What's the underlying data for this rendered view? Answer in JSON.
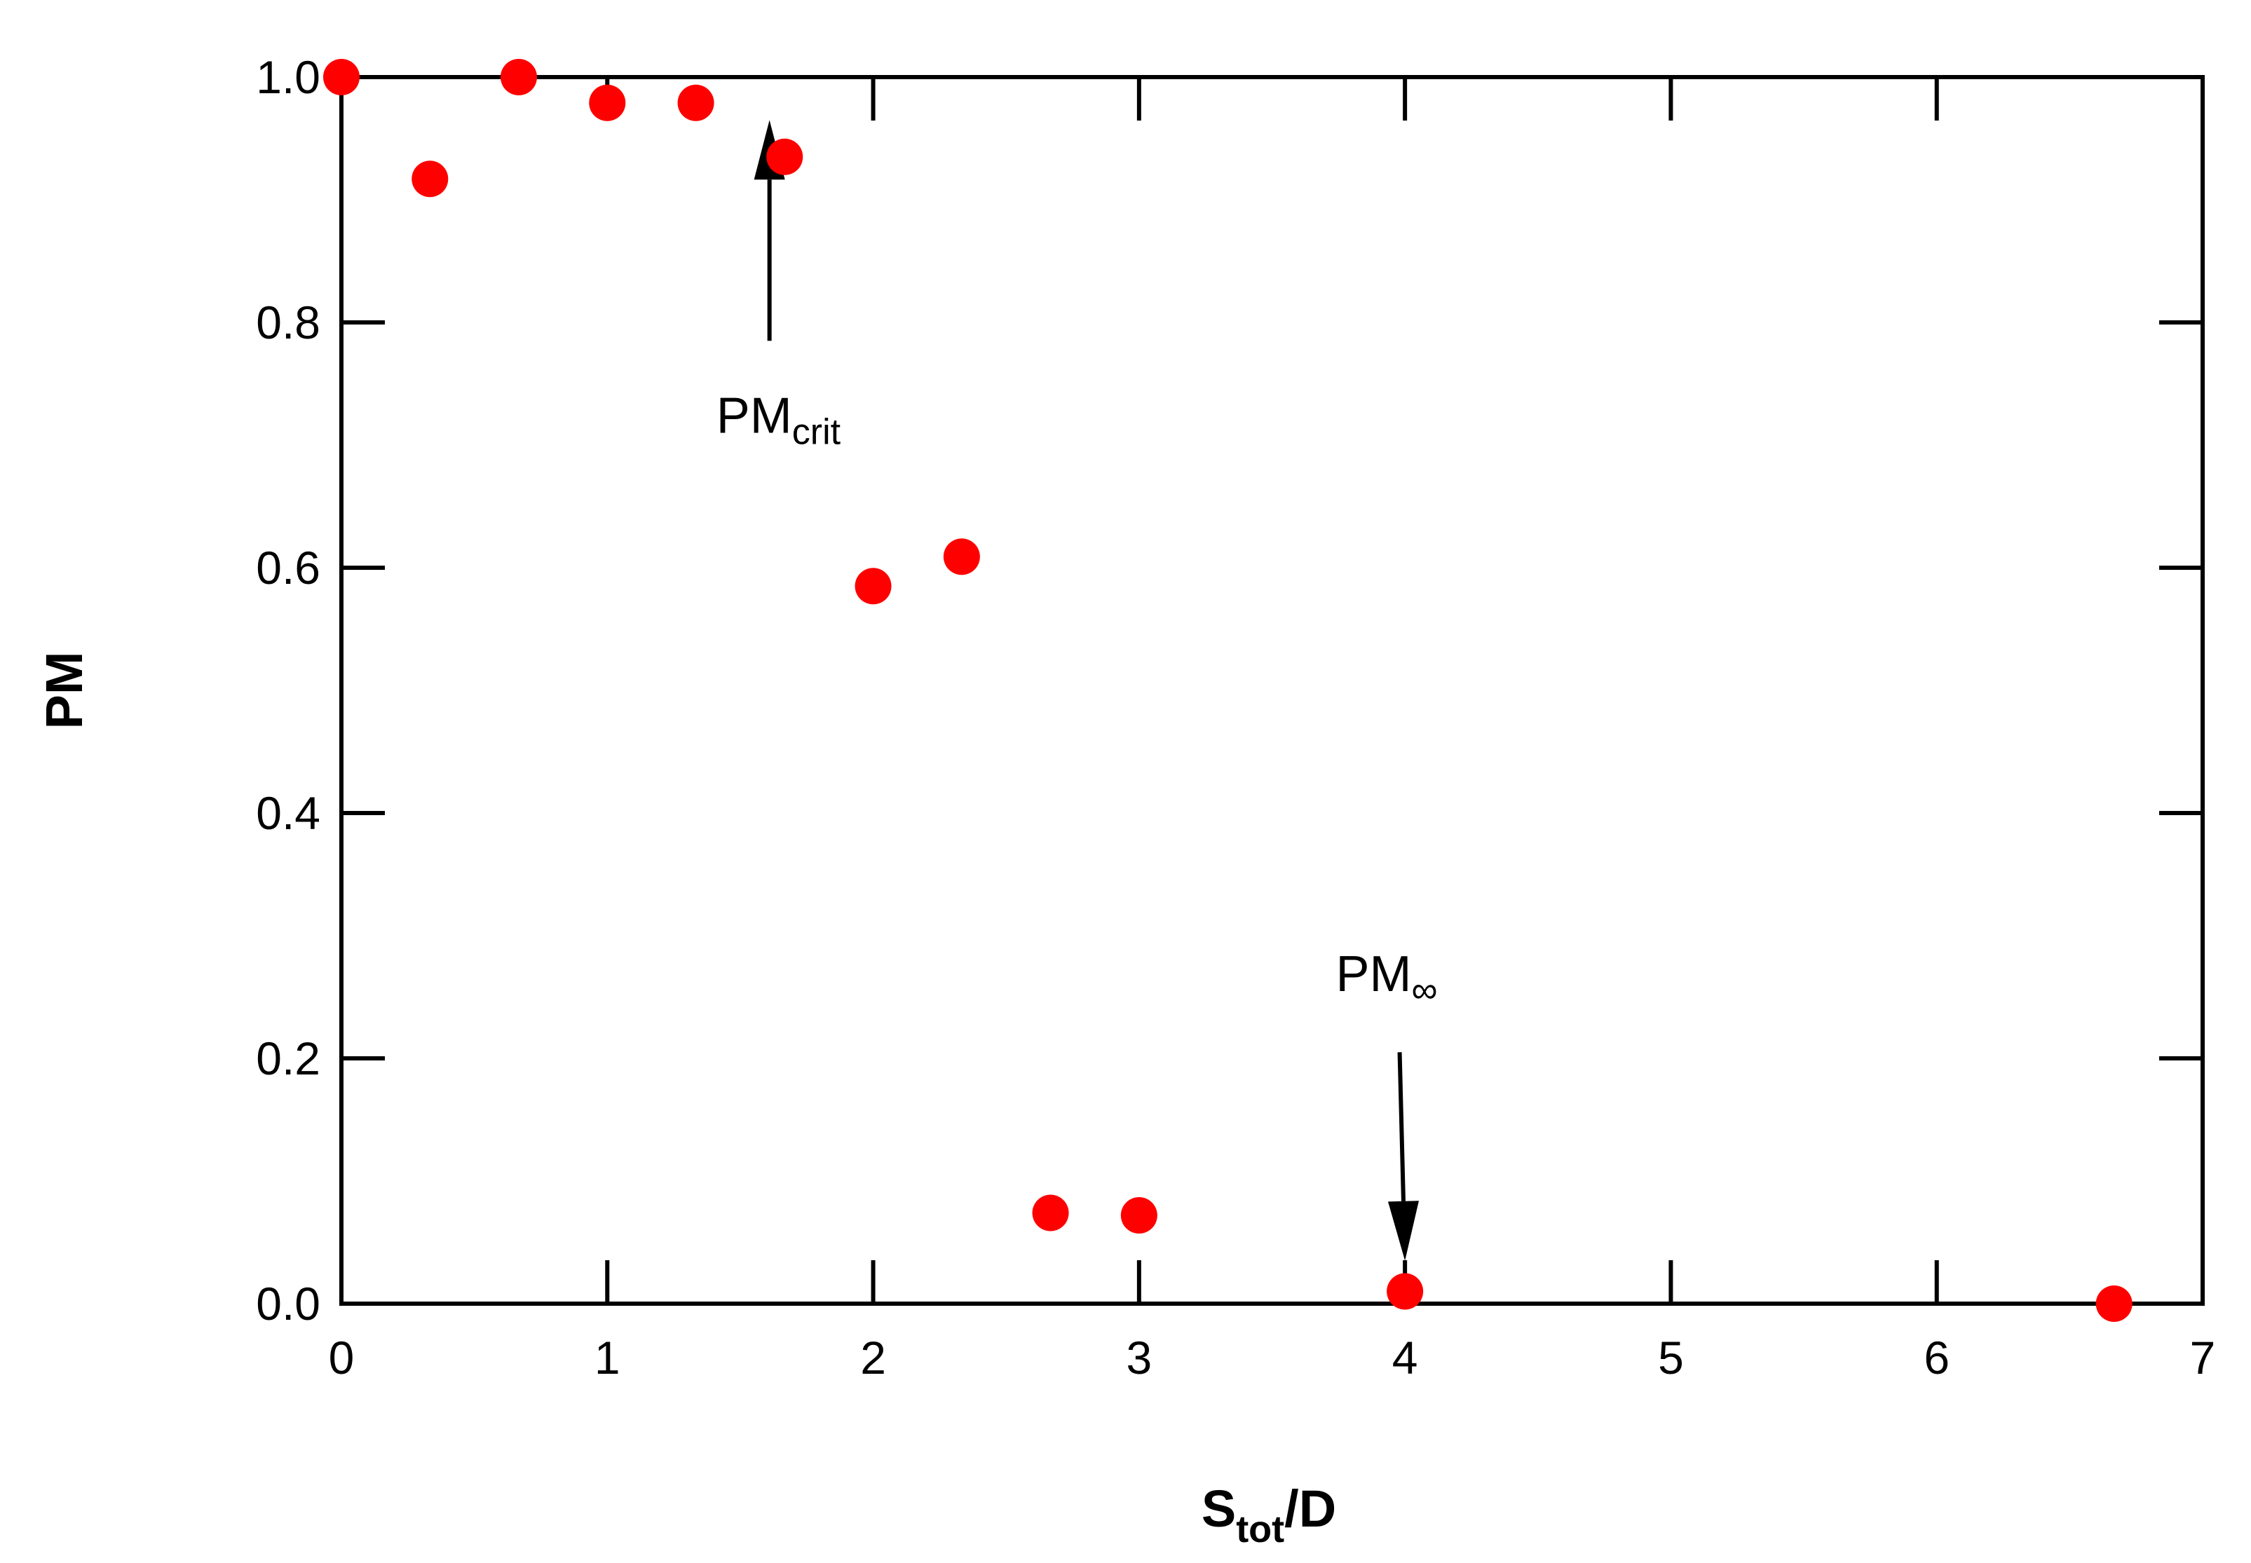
{
  "chart_data": {
    "type": "scatter",
    "xlabel": {
      "main": "S",
      "sub": "tot",
      "suffix": "/D"
    },
    "ylabel": "PM",
    "xlim": [
      0,
      7
    ],
    "ylim": [
      0,
      1
    ],
    "x_ticks": [
      0,
      1,
      2,
      3,
      4,
      5,
      6,
      7
    ],
    "x_tick_labels": [
      "0",
      "1",
      "2",
      "3",
      "4",
      "5",
      "6",
      "7"
    ],
    "y_ticks": [
      0,
      0.2,
      0.4,
      0.6,
      0.8,
      1.0
    ],
    "y_tick_labels": [
      "0.0",
      "0.2",
      "0.4",
      "0.6",
      "0.8",
      "1.0"
    ],
    "grid": false,
    "marker_color": "#ff0000",
    "series": [
      {
        "points": [
          {
            "x": 0,
            "y": 1.0
          },
          {
            "x": 0.333,
            "y": 0.917
          },
          {
            "x": 0.667,
            "y": 1.0
          },
          {
            "x": 1.0,
            "y": 0.979
          },
          {
            "x": 1.333,
            "y": 0.979
          },
          {
            "x": 1.667,
            "y": 0.935
          },
          {
            "x": 2.0,
            "y": 0.585
          },
          {
            "x": 2.333,
            "y": 0.609
          },
          {
            "x": 2.667,
            "y": 0.074
          },
          {
            "x": 3.0,
            "y": 0.072
          },
          {
            "x": 4.0,
            "y": 0.01
          },
          {
            "x": 6.667,
            "y": 0.0
          }
        ]
      }
    ],
    "annotations": [
      {
        "label_main": "PM",
        "label_sub": "crit",
        "arrow_from": {
          "x": 1.61,
          "y": 0.785
        },
        "arrow_to": {
          "x": 1.61,
          "y": 0.965
        },
        "text_at": {
          "x": 1.41,
          "y": 0.71
        }
      },
      {
        "label_main": "PM",
        "label_sub": "∞",
        "arrow_from": {
          "x": 3.98,
          "y": 0.205
        },
        "arrow_to": {
          "x": 4.0,
          "y": 0.035
        },
        "text_at": {
          "x": 3.74,
          "y": 0.255
        }
      }
    ]
  }
}
